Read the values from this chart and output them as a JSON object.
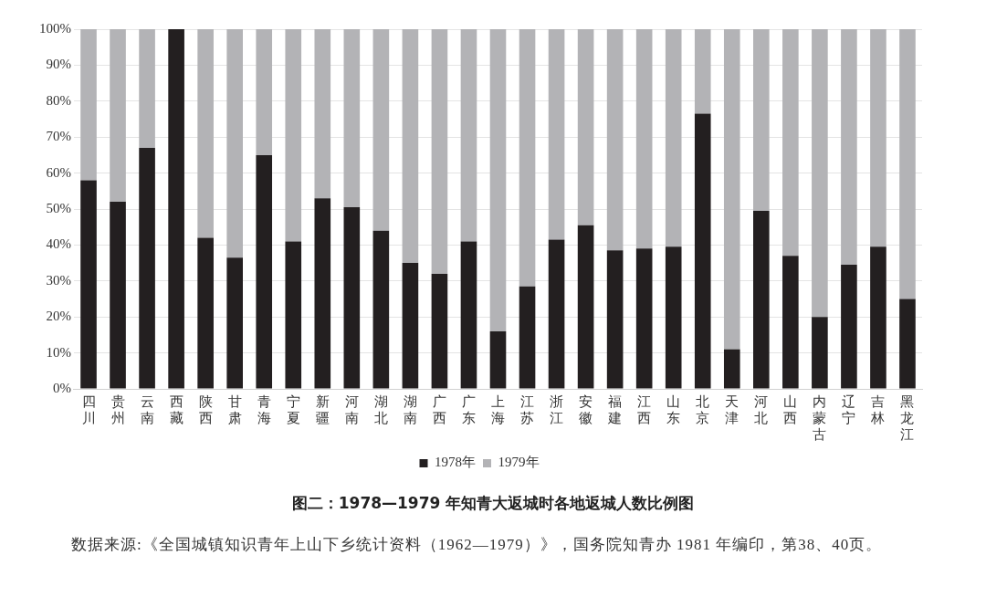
{
  "chart_data": {
    "type": "bar",
    "stacked": true,
    "title": "图二：1978—1979 年知青大返城时各地返城人数比例图",
    "categories": [
      "四川",
      "贵州",
      "云南",
      "西藏",
      "陕西",
      "甘肃",
      "青海",
      "宁夏",
      "新疆",
      "河南",
      "湖北",
      "湖南",
      "广西",
      "广东",
      "上海",
      "江苏",
      "浙江",
      "安徽",
      "福建",
      "江西",
      "山东",
      "北京",
      "天津",
      "河北",
      "山西",
      "内蒙古",
      "辽宁",
      "吉林",
      "黑龙江"
    ],
    "series": [
      {
        "name": "1978年",
        "color": "#231f20",
        "values": [
          58,
          52,
          67,
          100,
          42,
          36.5,
          65,
          41,
          53,
          50.5,
          44,
          35,
          32,
          41,
          16,
          28.5,
          41.5,
          45.5,
          38.5,
          39,
          39.5,
          76.5,
          11,
          49.5,
          37,
          20,
          34.5,
          39.5,
          25
        ]
      },
      {
        "name": "1979年",
        "color": "#b3b3b6",
        "values": [
          42,
          48,
          33,
          0,
          58,
          63.5,
          35,
          59,
          47,
          49.5,
          56,
          65,
          68,
          59,
          84,
          71.5,
          58.5,
          54.5,
          61.5,
          61,
          60.5,
          23.5,
          89,
          50.5,
          63,
          80,
          65.5,
          60.5,
          75
        ]
      }
    ],
    "ylim": [
      0,
      100
    ],
    "yticks": [
      {
        "value": 0,
        "label": "0%"
      },
      {
        "value": 10,
        "label": "10%"
      },
      {
        "value": 20,
        "label": "20%"
      },
      {
        "value": 30,
        "label": "30%"
      },
      {
        "value": 40,
        "label": "40%"
      },
      {
        "value": 50,
        "label": "50%"
      },
      {
        "value": 60,
        "label": "60%"
      },
      {
        "value": 70,
        "label": "70%"
      },
      {
        "value": 80,
        "label": "80%"
      },
      {
        "value": 90,
        "label": "90%"
      },
      {
        "value": 100,
        "label": "100%"
      }
    ],
    "grid": "y",
    "legend": "bottom",
    "annotations": [
      "数据来源:《全国城镇知识青年上山下乡统计资料（1962—1979）》，国务院知青办 1981 年编印，第38、40页。"
    ]
  }
}
